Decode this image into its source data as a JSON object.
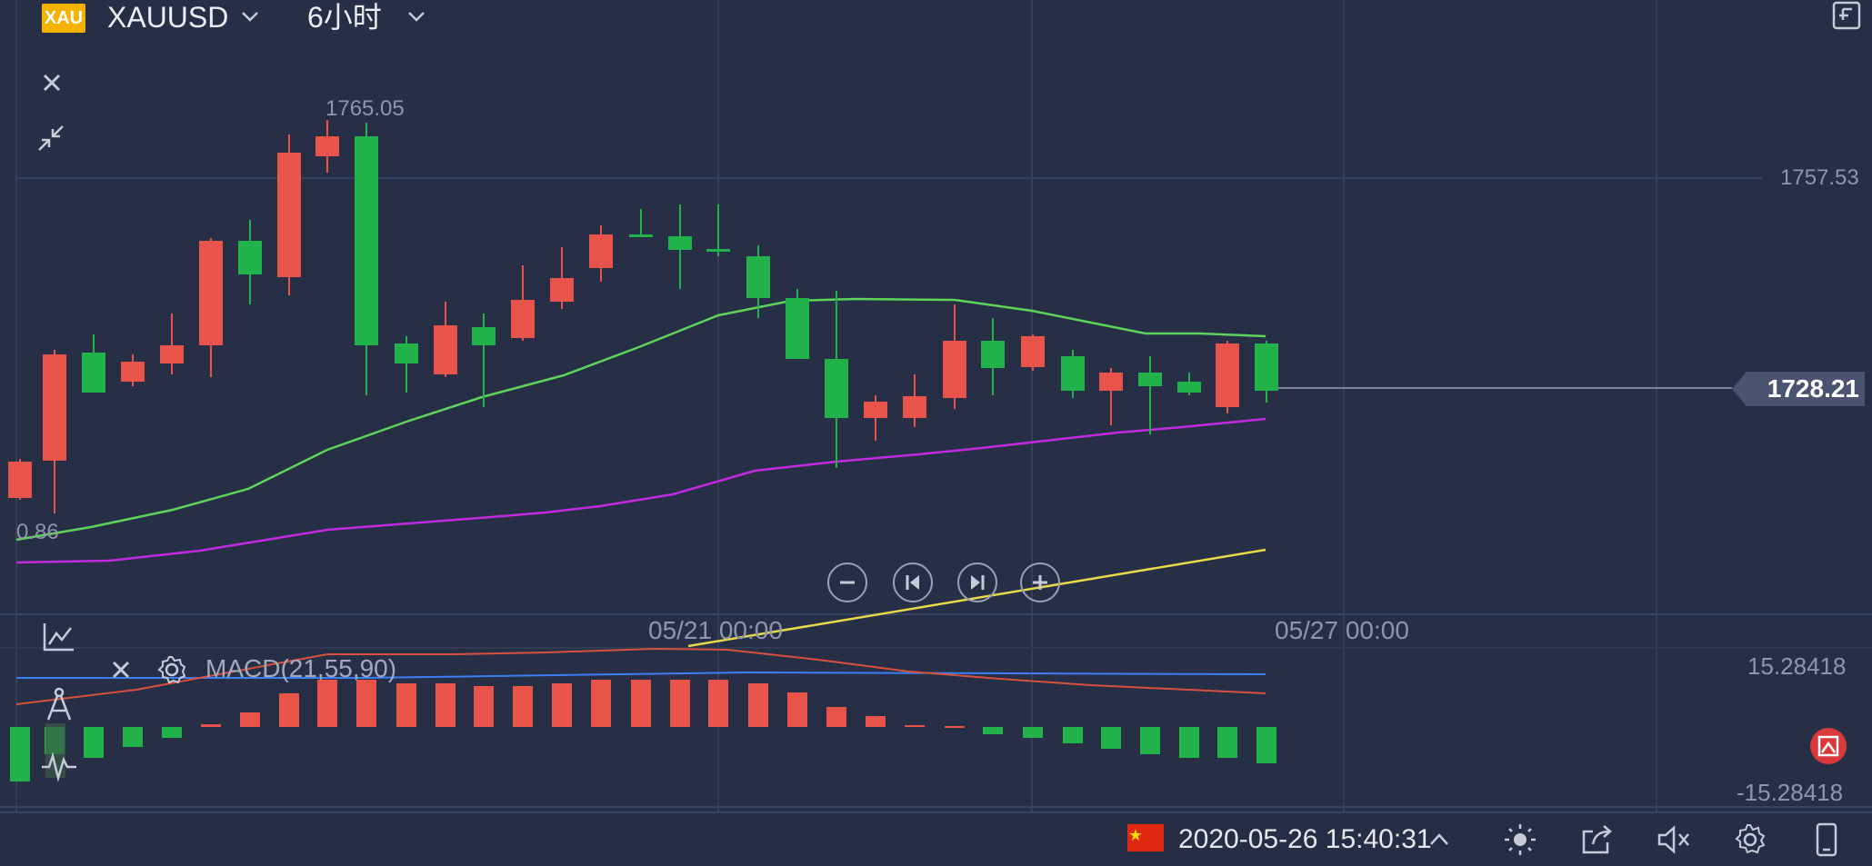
{
  "header": {
    "logo_text": "XAU",
    "symbol": "XAUUSD",
    "timeframe": "6小时"
  },
  "chart": {
    "high_marker": "1765.05",
    "left_clipped_value": "0.86",
    "price_axis_top": "1757.53",
    "current_price": "1728.21",
    "time_labels": [
      "05/21 00:00",
      "05/27 00:00"
    ]
  },
  "indicator": {
    "macd_label": "MACD(21,55,90)",
    "macd_max": "15.28418",
    "macd_min": "-15.28418"
  },
  "status": {
    "datetime": "2020-05-26 15:40:31"
  },
  "colors": {
    "background": "#272f47",
    "bull": "#22b24c",
    "bear": "#e8534a",
    "ma_fast": "#5fd35a",
    "ma_slow": "#c22be0",
    "trendline": "#e8d84a",
    "macd_line": "#3b7ff5",
    "signal_line": "#d9503f"
  },
  "icons": [
    "chevron-down-icon",
    "close-icon",
    "collapse-icon",
    "exit-fullscreen-icon",
    "chart-type-icon",
    "drawing-tool-icon",
    "indicator-icon",
    "settings-icon",
    "zoom-out-icon",
    "prev-icon",
    "next-icon",
    "zoom-in-icon",
    "alert-icon",
    "brightness-icon",
    "share-icon",
    "mute-icon",
    "gear-icon",
    "phone-icon"
  ]
}
